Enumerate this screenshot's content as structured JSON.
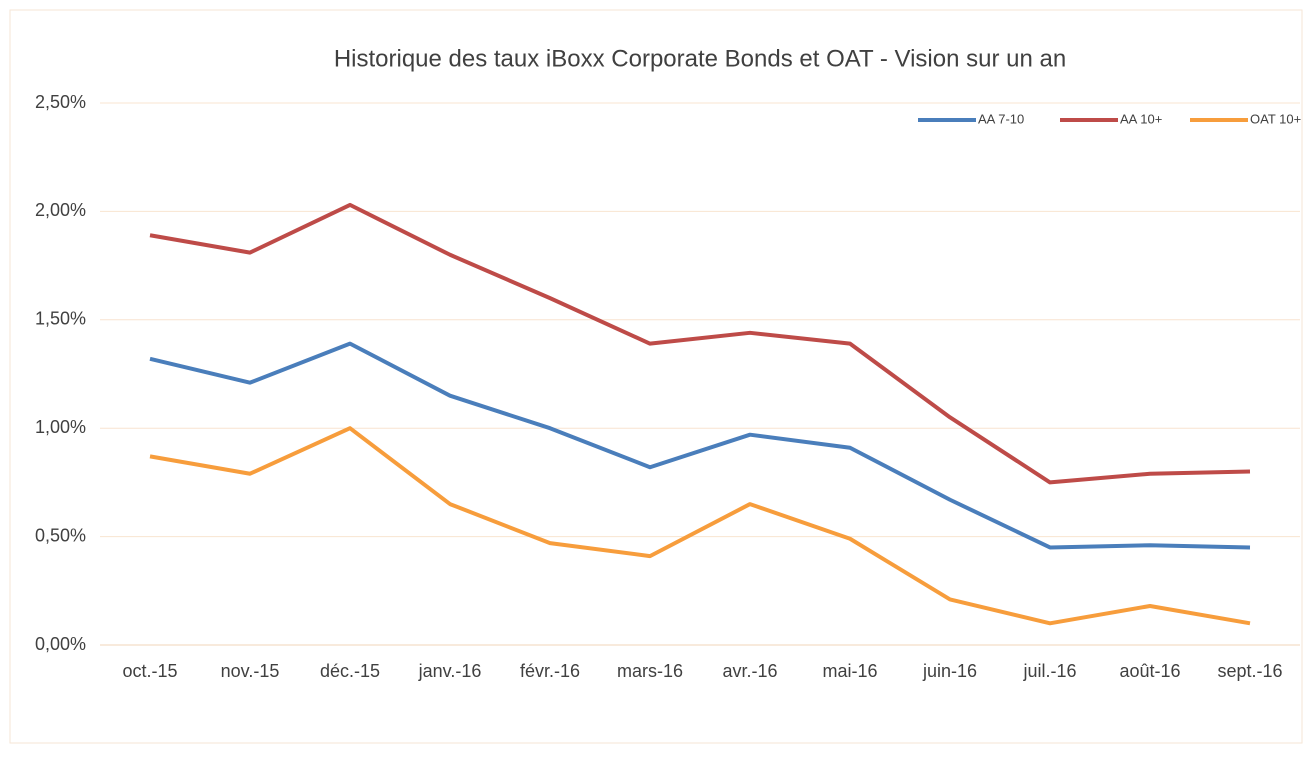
{
  "chart_data": {
    "type": "line",
    "title": "Historique des taux iBoxx Corporate Bonds et OAT - Vision sur un an",
    "categories": [
      "oct.-15",
      "nov.-15",
      "déc.-15",
      "janv.-16",
      "févr.-16",
      "mars-16",
      "avr.-16",
      "mai-16",
      "juin-16",
      "juil.-16",
      "août-16",
      "sept.-16"
    ],
    "series": [
      {
        "name": "AA 7-10",
        "color": "#4a7ebb",
        "values": [
          1.32,
          1.21,
          1.39,
          1.15,
          1.0,
          0.82,
          0.97,
          0.91,
          0.67,
          0.45,
          0.46,
          0.45
        ]
      },
      {
        "name": "AA 10+",
        "color": "#be4b48",
        "values": [
          1.89,
          1.81,
          2.03,
          1.8,
          1.6,
          1.39,
          1.44,
          1.39,
          1.05,
          0.75,
          0.79,
          0.8
        ]
      },
      {
        "name": "OAT 10+",
        "color": "#f79d3c",
        "values": [
          0.87,
          0.79,
          1.0,
          0.65,
          0.47,
          0.41,
          0.65,
          0.49,
          0.21,
          0.1,
          0.18,
          0.1
        ]
      }
    ],
    "ylim": [
      0,
      2.5
    ],
    "yticks": [
      {
        "value": 0,
        "label": "0,00%"
      },
      {
        "value": 0.5,
        "label": "0,50%"
      },
      {
        "value": 1,
        "label": "1,00%"
      },
      {
        "value": 1.5,
        "label": "1,50%"
      },
      {
        "value": 2,
        "label": "2,00%"
      },
      {
        "value": 2.5,
        "label": "2,50%"
      }
    ],
    "grid": true,
    "legend": "top-right"
  }
}
